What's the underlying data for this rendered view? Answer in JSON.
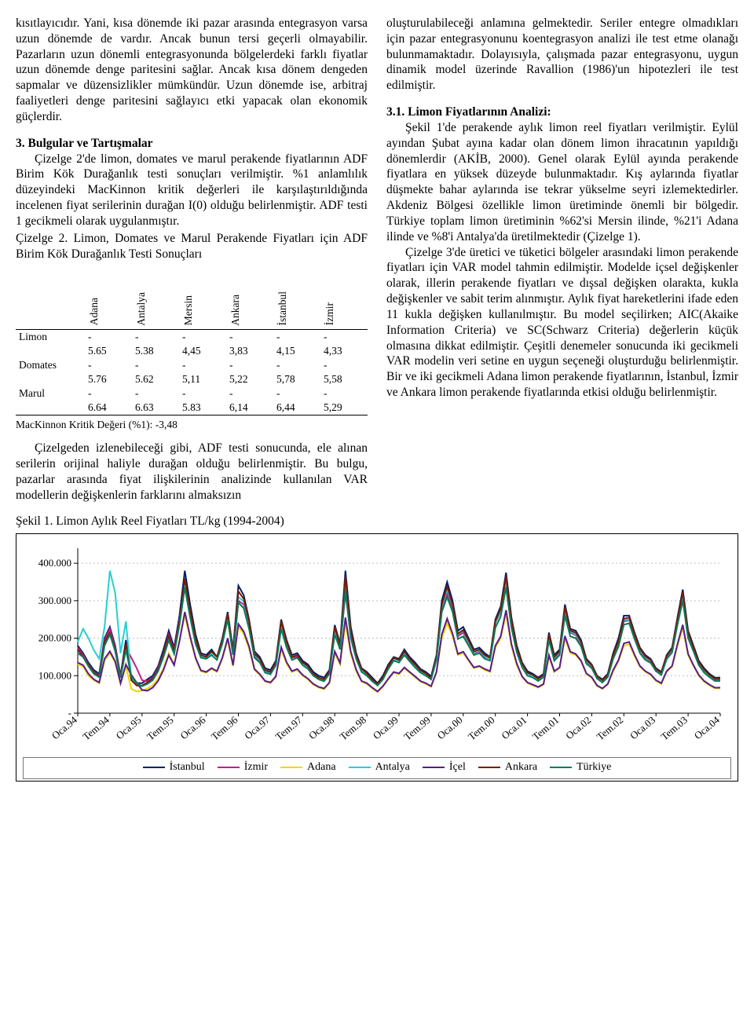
{
  "left_column": {
    "para1": "kısıtlayıcıdır. Yani, kısa dönemde iki pazar arasında entegrasyon varsa uzun dönemde de vardır. Ancak bunun tersi geçerli olmayabilir. Pazarların uzun dönemli entegrasyonunda bölgelerdeki farklı fiyatlar uzun dönemde denge paritesini sağlar. Ancak kısa dönem dengeden sapmalar ve düzensizlikler mümkündür. Uzun dönemde ise, arbitraj faaliyetleri denge paritesini sağlayıcı etki yapacak olan ekonomik güçlerdir.",
    "sec3_title": "3. Bulgular ve Tartışmalar",
    "para2": "Çizelge 2'de limon, domates ve marul perakende fiyatlarının ADF Birim Kök Durağanlık testi sonuçları verilmiştir. %1 anlamlılık düzeyindeki MacKinnon kritik değerleri ile karşılaştırıldığında incelenen fiyat serilerinin durağan I(0) olduğu belirlenmiştir. ADF testi 1 gecikmeli olarak uygulanmıştır.",
    "table_caption": "Çizelge 2. Limon, Domates ve Marul Perakende Fiyatları için ADF Birim Kök Durağanlık Testi Sonuçları",
    "para3": "Çizelgeden izlenebileceği gibi, ADF testi sonucunda, ele alınan serilerin orijinal haliyle durağan olduğu belirlenmiştir. Bu bulgu, pazarlar arasında fiyat ilişkilerinin analizinde kullanılan VAR modellerin değişkenlerin farklarını almaksızın"
  },
  "right_column": {
    "para1": "oluşturulabileceği anlamına gelmektedir. Seriler entegre olmadıkları için pazar entegrasyonunu koentegrasyon analizi ile test etme olanağı bulunmamaktadır. Dolayısıyla, çalışmada pazar entegrasyonu, uygun dinamik model üzerinde Ravallion (1986)'un hipotezleri ile test edilmiştir.",
    "sec31_title": "3.1. Limon Fiyatlarının Analizi:",
    "para2": "Şekil 1'de perakende aylık limon reel fiyatları verilmiştir. Eylül ayından Şubat ayına kadar olan dönem limon ihracatının yapıldığı dönemlerdir (AKİB, 2000). Genel olarak Eylül ayında perakende fiyatlara en yüksek düzeyde bulunmaktadır. Kış aylarında fiyatlar düşmekte bahar aylarında ise tekrar yükselme seyri izlemektedirler. Akdeniz Bölgesi özellikle limon üretiminde önemli bir bölgedir. Türkiye toplam limon üretiminin %62'si Mersin ilinde, %21'i Adana ilinde ve %8'i Antalya'da üretilmektedir (Çizelge 1).",
    "para3": "Çizelge 3'de üretici ve tüketici bölgeler arasındaki limon perakende fiyatları için VAR model tahmin edilmiştir. Modelde içsel değişkenler olarak, illerin perakende fiyatları ve dışsal değişken olarakta, kukla değişkenler ve sabit terim alınmıştır. Aylık fiyat hareketlerini ifade eden 11 kukla değişken kullanılmıştır. Bu model seçilirken; AIC(Akaike Information Criteria) ve SC(Schwarz Criteria) değerlerin küçük olmasına dikkat edilmiştir. Çeşitli denemeler sonucunda iki gecikmeli VAR modelin veri setine en uygun seçeneği oluşturduğu belirlenmiştir. Bir ve iki gecikmeli Adana limon perakende fiyatlarının, İstanbul, İzmir ve Ankara limon perakende fiyatlarında etkisi olduğu belirlenmiştir."
  },
  "adf_table": {
    "columns": [
      "Adana",
      "Antalya",
      "Mersin",
      "Ankara",
      "İstanbul",
      "İzmir"
    ],
    "rows": [
      {
        "label": "Limon",
        "values": [
          "-5.65",
          "-5.38",
          "-4,45",
          "-3,83",
          "-4,15",
          "-4,33"
        ]
      },
      {
        "label": "Domates",
        "values": [
          "-5.76",
          "-5.62",
          "-5,11",
          "-5,22",
          "-5,78",
          "-5,58"
        ]
      },
      {
        "label": "Marul",
        "values": [
          "-6.64",
          "-6.63",
          "-5.83",
          "-6,14",
          "-6,44",
          "-5,29"
        ]
      }
    ],
    "footnote": "MacKinnon Kritik Değeri (%1): -3,48"
  },
  "chart": {
    "title": "Şekil 1. Limon Aylık Reel Fiyatları TL/kg (1994-2004)",
    "type": "line",
    "background_color": "#ffffff",
    "grid_color": "#c0c0c0",
    "axis_color": "#000000",
    "ylim": [
      0,
      440
    ],
    "yticks": [
      {
        "v": 0,
        "label": "-"
      },
      {
        "v": 100,
        "label": "100.000"
      },
      {
        "v": 200,
        "label": "200.000"
      },
      {
        "v": 300,
        "label": "300.000"
      },
      {
        "v": 400,
        "label": "400.000"
      }
    ],
    "xtick_labels": [
      "Oca.94",
      "Tem.94",
      "Oca.95",
      "Tem.95",
      "Oca.96",
      "Tem.96",
      "Oca.97",
      "Tem.97",
      "Oca.98",
      "Tem.98",
      "Oca.99",
      "Tem.99",
      "Oca.00",
      "Tem.00",
      "Oca.01",
      "Tem.01",
      "Oca.02",
      "Tem.02",
      "Oca.03",
      "Tem.03",
      "Oca.04"
    ],
    "line_width": 2,
    "series": [
      {
        "name": "İstanbul",
        "color": "#001f6b",
        "values": [
          180,
          160,
          135,
          115,
          105,
          200,
          230,
          180,
          100,
          195,
          95,
          80,
          80,
          90,
          100,
          125,
          170,
          220,
          175,
          260,
          380,
          290,
          210,
          160,
          155,
          170,
          150,
          200,
          270,
          170,
          340,
          315,
          250,
          165,
          150,
          120,
          115,
          140,
          250,
          195,
          155,
          160,
          140,
          130,
          110,
          100,
          95,
          115,
          235,
          185,
          380,
          230,
          160,
          120,
          110,
          95,
          80,
          100,
          130,
          150,
          145,
          170,
          150,
          135,
          118,
          110,
          98,
          155,
          300,
          350,
          300,
          220,
          230,
          200,
          170,
          175,
          160,
          150,
          250,
          285,
          375,
          255,
          180,
          135,
          112,
          105,
          95,
          105,
          215,
          155,
          170,
          290,
          225,
          220,
          195,
          145,
          130,
          100,
          90,
          105,
          160,
          200,
          260,
          260,
          215,
          175,
          155,
          145,
          120,
          110,
          155,
          175,
          255,
          330,
          220,
          180,
          140,
          120,
          105,
          95,
          95
        ]
      },
      {
        "name": "İzmir",
        "color": "#c21f8a",
        "values": [
          175,
          155,
          130,
          110,
          100,
          195,
          225,
          175,
          98,
          175,
          148,
          120,
          88,
          85,
          95,
          120,
          160,
          210,
          168,
          250,
          340,
          260,
          190,
          150,
          150,
          162,
          150,
          190,
          260,
          160,
          300,
          290,
          235,
          150,
          140,
          112,
          108,
          130,
          235,
          180,
          148,
          152,
          134,
          124,
          104,
          92,
          88,
          108,
          220,
          175,
          320,
          210,
          150,
          115,
          104,
          88,
          76,
          94,
          122,
          145,
          140,
          160,
          142,
          128,
          112,
          104,
          92,
          148,
          280,
          320,
          280,
          205,
          215,
          188,
          160,
          165,
          150,
          145,
          240,
          270,
          350,
          240,
          170,
          128,
          105,
          100,
          90,
          100,
          200,
          145,
          160,
          270,
          215,
          208,
          185,
          138,
          124,
          95,
          85,
          100,
          150,
          185,
          245,
          248,
          205,
          168,
          148,
          138,
          115,
          105,
          148,
          168,
          245,
          310,
          210,
          170,
          132,
          112,
          100,
          90,
          90
        ]
      },
      {
        "name": "Adana",
        "color": "#f2d600",
        "values": [
          130,
          125,
          100,
          88,
          80,
          140,
          160,
          135,
          78,
          125,
          65,
          58,
          60,
          66,
          74,
          92,
          120,
          160,
          130,
          195,
          260,
          200,
          145,
          112,
          108,
          118,
          110,
          145,
          195,
          125,
          230,
          212,
          172,
          115,
          102,
          84,
          80,
          96,
          170,
          132,
          110,
          115,
          100,
          90,
          76,
          68,
          64,
          80,
          160,
          130,
          240,
          158,
          112,
          84,
          78,
          66,
          56,
          70,
          90,
          108,
          104,
          120,
          108,
          96,
          84,
          78,
          70,
          108,
          200,
          240,
          205,
          155,
          160,
          140,
          120,
          124,
          115,
          110,
          175,
          200,
          265,
          178,
          128,
          96,
          80,
          74,
          68,
          76,
          150,
          110,
          120,
          200,
          160,
          155,
          138,
          104,
          94,
          72,
          65,
          76,
          112,
          138,
          180,
          184,
          152,
          124,
          110,
          102,
          86,
          78,
          110,
          124,
          178,
          228,
          155,
          126,
          100,
          84,
          74,
          66,
          66
        ]
      },
      {
        "name": "Antalya",
        "color": "#25d0d2",
        "values": [
          190,
          225,
          200,
          168,
          145,
          230,
          380,
          320,
          160,
          245,
          95,
          74,
          72,
          80,
          90,
          112,
          150,
          195,
          160,
          240,
          345,
          265,
          192,
          150,
          148,
          160,
          150,
          195,
          265,
          165,
          310,
          298,
          240,
          155,
          142,
          110,
          105,
          128,
          235,
          180,
          150,
          155,
          134,
          122,
          102,
          92,
          88,
          108,
          220,
          178,
          340,
          215,
          152,
          114,
          104,
          88,
          76,
          94,
          122,
          145,
          140,
          160,
          142,
          128,
          112,
          104,
          92,
          148,
          285,
          330,
          288,
          210,
          220,
          190,
          162,
          168,
          152,
          145,
          240,
          272,
          355,
          242,
          170,
          128,
          105,
          100,
          90,
          100,
          205,
          148,
          162,
          275,
          218,
          210,
          188,
          140,
          126,
          96,
          86,
          100,
          152,
          188,
          248,
          250,
          208,
          170,
          150,
          140,
          116,
          106,
          150,
          170,
          248,
          315,
          212,
          172,
          134,
          114,
          100,
          92,
          92
        ]
      },
      {
        "name": "İçel",
        "color": "#5a1b8c",
        "values": [
          135,
          128,
          105,
          90,
          82,
          145,
          165,
          138,
          80,
          130,
          102,
          82,
          62,
          60,
          68,
          86,
          115,
          155,
          128,
          192,
          270,
          205,
          148,
          114,
          110,
          120,
          112,
          148,
          200,
          128,
          238,
          218,
          178,
          118,
          104,
          86,
          82,
          98,
          176,
          136,
          112,
          118,
          102,
          92,
          78,
          70,
          66,
          82,
          165,
          134,
          255,
          164,
          116,
          86,
          80,
          68,
          58,
          72,
          92,
          110,
          106,
          122,
          110,
          98,
          86,
          80,
          72,
          110,
          210,
          252,
          212,
          158,
          164,
          142,
          122,
          126,
          118,
          112,
          180,
          205,
          275,
          184,
          132,
          98,
          82,
          76,
          70,
          78,
          155,
          112,
          122,
          206,
          164,
          158,
          140,
          106,
          96,
          74,
          66,
          78,
          115,
          142,
          186,
          190,
          156,
          126,
          112,
          104,
          88,
          80,
          112,
          126,
          184,
          236,
          158,
          128,
          102,
          86,
          76,
          68,
          68
        ]
      },
      {
        "name": "Ankara",
        "color": "#7a1b00",
        "values": [
          170,
          150,
          128,
          108,
          98,
          190,
          215,
          170,
          95,
          185,
          88,
          74,
          74,
          82,
          92,
          116,
          158,
          205,
          165,
          245,
          360,
          275,
          200,
          155,
          150,
          165,
          150,
          195,
          265,
          165,
          325,
          305,
          245,
          158,
          145,
          115,
          110,
          135,
          245,
          190,
          150,
          155,
          135,
          125,
          105,
          95,
          90,
          110,
          230,
          180,
          365,
          220,
          155,
          118,
          106,
          90,
          78,
          96,
          125,
          148,
          142,
          165,
          145,
          130,
          114,
          106,
          94,
          150,
          290,
          338,
          290,
          212,
          222,
          194,
          165,
          170,
          155,
          148,
          245,
          278,
          365,
          248,
          175,
          132,
          108,
          102,
          92,
          102,
          210,
          150,
          165,
          282,
          220,
          215,
          190,
          142,
          128,
          98,
          88,
          102,
          155,
          192,
          252,
          255,
          210,
          172,
          152,
          142,
          118,
          108,
          152,
          172,
          250,
          322,
          215,
          175,
          136,
          116,
          102,
          92,
          92
        ]
      },
      {
        "name": "Türkiye",
        "color": "#0b7a5a",
        "values": [
          160,
          150,
          125,
          105,
          96,
          180,
          210,
          165,
          94,
          170,
          98,
          80,
          72,
          78,
          88,
          112,
          150,
          195,
          158,
          235,
          335,
          255,
          185,
          148,
          145,
          155,
          142,
          185,
          250,
          155,
          295,
          280,
          225,
          148,
          135,
          108,
          104,
          128,
          225,
          175,
          142,
          148,
          128,
          118,
          100,
          90,
          85,
          105,
          210,
          170,
          330,
          200,
          145,
          110,
          100,
          85,
          74,
          90,
          118,
          140,
          135,
          155,
          138,
          122,
          108,
          100,
          90,
          142,
          270,
          310,
          270,
          198,
          205,
          180,
          155,
          160,
          145,
          140,
          228,
          258,
          335,
          228,
          162,
          122,
          100,
          95,
          86,
          96,
          195,
          140,
          155,
          260,
          205,
          200,
          178,
          132,
          120,
          92,
          82,
          96,
          145,
          178,
          236,
          240,
          198,
          160,
          142,
          134,
          112,
          102,
          144,
          162,
          235,
          300,
          200,
          165,
          128,
          108,
          96,
          86,
          86
        ]
      }
    ]
  }
}
